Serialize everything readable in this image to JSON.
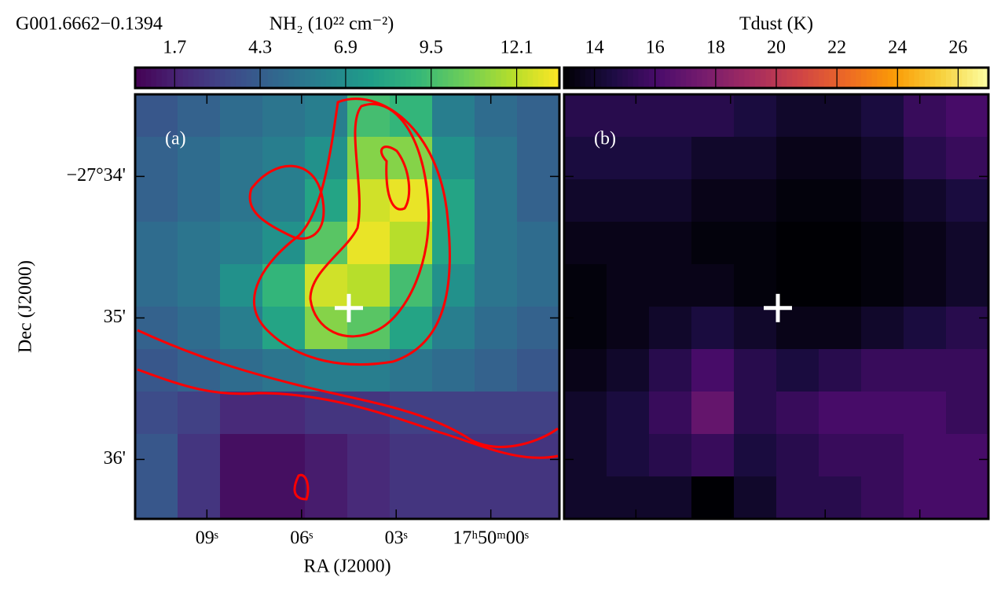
{
  "chart_data": [
    {
      "type": "heatmap",
      "title": "G001.6662−0.1394",
      "panel_label": "(a)",
      "colorbar_label": "NH₂ (10²² cm⁻²)",
      "colormap": "viridis",
      "clim": [
        0.5,
        13.4
      ],
      "cticks": [
        1.7,
        4.3,
        6.9,
        9.5,
        12.1
      ],
      "xlabel": "RA (J2000)",
      "ylabel": "Dec (J2000)",
      "xlim": [
        11.275,
        -2.175
      ],
      "xticks": [
        {
          "value": 9,
          "label": "09ˢ"
        },
        {
          "value": 6,
          "label": "06ˢ"
        },
        {
          "value": 3,
          "label": "03ˢ"
        },
        {
          "value": 0,
          "label": "17ʰ50ᵐ00ˢ"
        }
      ],
      "ylim": [
        36.42,
        33.42
      ],
      "yticks": [
        {
          "value": 34,
          "label": "−27°34'"
        },
        {
          "value": 35,
          "label": "35'"
        },
        {
          "value": 36,
          "label": "36'"
        }
      ],
      "values": [
        [
          4,
          4.5,
          5,
          5.5,
          6,
          9.5,
          9,
          6,
          5,
          4.5
        ],
        [
          4.5,
          5,
          5.5,
          6,
          7,
          11,
          11,
          7,
          5.5,
          4.5
        ],
        [
          4.5,
          5,
          5.5,
          6,
          8,
          12.5,
          13,
          8,
          5.5,
          4.5
        ],
        [
          5,
          5.5,
          6,
          7,
          10,
          13,
          12,
          8,
          5.5,
          5
        ],
        [
          5,
          5.5,
          7,
          9,
          12.5,
          12,
          9.5,
          7,
          5.5,
          5
        ],
        [
          4.5,
          5,
          6,
          8,
          11,
          10,
          8,
          6,
          5,
          4.5
        ],
        [
          4,
          4.5,
          5,
          5.5,
          6,
          6,
          5.5,
          5,
          4.5,
          4
        ],
        [
          3.5,
          3,
          2,
          2,
          2.5,
          2.5,
          3,
          3,
          3,
          3
        ],
        [
          4,
          2.5,
          1,
          1,
          1.5,
          2,
          2.5,
          2.5,
          2.5,
          2.5
        ],
        [
          4,
          2.5,
          1,
          1,
          1.5,
          2,
          2.5,
          2.5,
          2.5,
          2.5
        ]
      ],
      "marker": {
        "x": 4.5,
        "y": 34.93
      },
      "marker_color": "#ffffff"
    },
    {
      "type": "heatmap",
      "panel_label": "(b)",
      "colorbar_label": "Tdust (K)",
      "colormap": "inferno",
      "clim": [
        13,
        27
      ],
      "cticks": [
        14,
        16,
        18,
        20,
        22,
        24,
        26
      ],
      "xlim": [
        11.275,
        -2.175
      ],
      "ylim": [
        36.42,
        33.42
      ],
      "values": [
        [
          15,
          15,
          15,
          15,
          14.5,
          14,
          14,
          14.5,
          15.5,
          16
        ],
        [
          14.5,
          14.5,
          14.5,
          14,
          14,
          13.5,
          13.5,
          14,
          15,
          15.5
        ],
        [
          14,
          14,
          14,
          13.5,
          13.5,
          13.2,
          13.2,
          13.5,
          14,
          14.5
        ],
        [
          13.5,
          13.5,
          13.5,
          13.2,
          13.2,
          13,
          13,
          13.2,
          13.5,
          14
        ],
        [
          13.2,
          13.5,
          13.5,
          13.5,
          13.2,
          13,
          13,
          13.2,
          13.5,
          14
        ],
        [
          13.2,
          13.5,
          14,
          14.5,
          14,
          13.5,
          13.5,
          14,
          14.5,
          15
        ],
        [
          13.5,
          14,
          15,
          16,
          15,
          14.5,
          15,
          15.5,
          15.5,
          15.5
        ],
        [
          14,
          14.5,
          15.5,
          17,
          15,
          15.5,
          16,
          16,
          16,
          15.5
        ],
        [
          14,
          14.5,
          15,
          15.5,
          14.5,
          15,
          15.5,
          15.5,
          16,
          16
        ],
        [
          14,
          14,
          14,
          13,
          14,
          15,
          15,
          15.5,
          16,
          16
        ]
      ],
      "marker": {
        "x": 4.5,
        "y": 34.93
      },
      "marker_color": "#ffffff"
    }
  ]
}
